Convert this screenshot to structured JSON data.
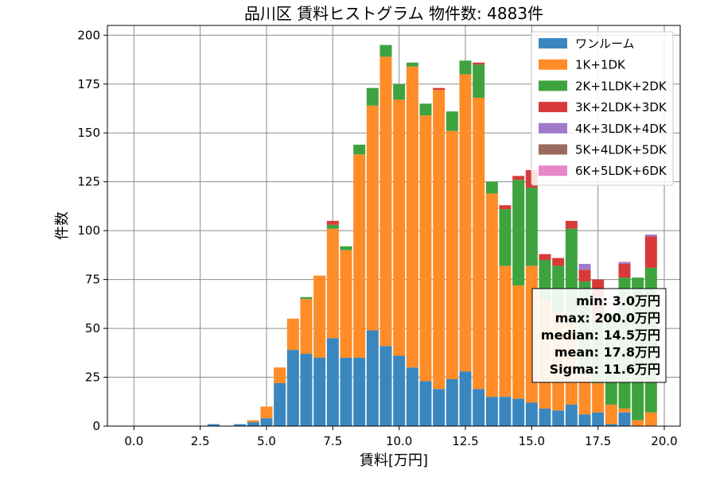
{
  "chart_data": {
    "type": "bar",
    "stacked": true,
    "title": "品川区 賃料ヒストグラム  物件数: 4883件",
    "xlabel": "賃料[万円]",
    "ylabel": "件数",
    "xlim": [
      -1.0,
      20.6
    ],
    "ylim": [
      0,
      205
    ],
    "xticks": [
      "0.0",
      "2.5",
      "5.0",
      "7.5",
      "10.0",
      "12.5",
      "15.0",
      "17.5",
      "20.0"
    ],
    "xtick_values": [
      0,
      2.5,
      5,
      7.5,
      10,
      12.5,
      15,
      17.5,
      20
    ],
    "yticks": [
      0,
      25,
      50,
      75,
      100,
      125,
      150,
      175,
      200
    ],
    "grid": true,
    "legend_position": "top-right",
    "bin_width": 0.5,
    "bar_width_fraction": 0.9,
    "x": [
      3.0,
      3.5,
      4.0,
      4.5,
      5.0,
      5.5,
      6.0,
      6.5,
      7.0,
      7.5,
      8.0,
      8.5,
      9.0,
      9.5,
      10.0,
      10.5,
      11.0,
      11.5,
      12.0,
      12.5,
      13.0,
      13.5,
      14.0,
      14.5,
      15.0,
      15.5,
      16.0,
      16.5,
      17.0,
      17.5,
      18.0,
      18.5,
      19.0,
      19.5
    ],
    "series": [
      {
        "name": "ワンルーム",
        "color": "#3a87c0",
        "values": [
          1,
          0,
          1,
          2,
          4,
          22,
          39,
          37,
          35,
          45,
          35,
          35,
          49,
          41,
          36,
          30,
          23,
          19,
          24,
          28,
          19,
          15,
          15,
          14,
          12,
          9,
          8,
          11,
          6,
          7,
          1,
          7,
          0,
          0
        ]
      },
      {
        "name": "1K+1DK",
        "color": "#ff8c27",
        "values": [
          0,
          0,
          0,
          1,
          6,
          8,
          16,
          28,
          42,
          56,
          55,
          104,
          115,
          148,
          131,
          154,
          136,
          153,
          127,
          152,
          149,
          104,
          67,
          58,
          70,
          55,
          50,
          41,
          20,
          15,
          10,
          2,
          3,
          7
        ]
      },
      {
        "name": "2K+1LDK+2DK",
        "color": "#3ea33e",
        "values": [
          0,
          0,
          0,
          0,
          0,
          0,
          0,
          1,
          0,
          2,
          2,
          5,
          9,
          6,
          8,
          2,
          6,
          0,
          10,
          7,
          17,
          6,
          29,
          54,
          40,
          21,
          24,
          49,
          48,
          31,
          46,
          67,
          73,
          74
        ]
      },
      {
        "name": "3K+2LDK+3DK",
        "color": "#d83a3a",
        "values": [
          0,
          0,
          0,
          0,
          0,
          0,
          0,
          0,
          0,
          2,
          0,
          0,
          0,
          0,
          0,
          0,
          0,
          1,
          0,
          0,
          1,
          0,
          2,
          2,
          9,
          3,
          4,
          4,
          6,
          22,
          0,
          7,
          0,
          16
        ]
      },
      {
        "name": "4K+3LDK+4DK",
        "color": "#a07ac8",
        "values": [
          0,
          0,
          0,
          0,
          0,
          0,
          0,
          0,
          0,
          0,
          0,
          0,
          0,
          0,
          0,
          0,
          0,
          0,
          0,
          0,
          0,
          0,
          0,
          0,
          0,
          0,
          0,
          0,
          3,
          0,
          0,
          1,
          0,
          1
        ]
      },
      {
        "name": "5K+4LDK+5DK",
        "color": "#9b6a5c",
        "values": [
          0,
          0,
          0,
          0,
          0,
          0,
          0,
          0,
          0,
          0,
          0,
          0,
          0,
          0,
          0,
          0,
          0,
          0,
          0,
          0,
          0,
          0,
          0,
          0,
          0,
          0,
          0,
          0,
          0,
          0,
          0,
          0,
          0,
          0
        ]
      },
      {
        "name": "6K+5LDK+6DK",
        "color": "#e887c8",
        "values": [
          0,
          0,
          0,
          0,
          0,
          0,
          0,
          0,
          0,
          0,
          0,
          0,
          0,
          0,
          0,
          0,
          0,
          0,
          0,
          0,
          0,
          0,
          0,
          0,
          0,
          0,
          0,
          0,
          0,
          0,
          0,
          0,
          0,
          0
        ]
      }
    ],
    "stats_box": [
      "min: 3.0万円",
      "max: 200.0万円",
      "median: 14.5万円",
      "mean: 17.8万円",
      "Sigma: 11.6万円"
    ]
  }
}
